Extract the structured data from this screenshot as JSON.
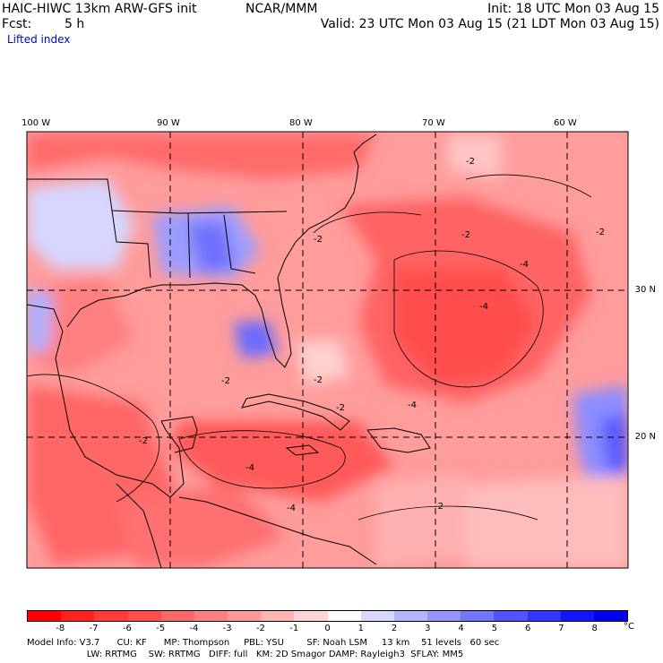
{
  "header": {
    "model_title": "HAIC-HIWC 13km ARW-GFS init",
    "org": "NCAR/MMM",
    "init": "Init: 18 UTC Mon 03 Aug 15",
    "fcst_label": "Fcst:",
    "fcst_value": "5 h",
    "valid": "Valid: 23 UTC Mon 03 Aug 15 (21 LDT Mon 03 Aug 15)",
    "field": "Lifted index"
  },
  "map": {
    "lon_labels": [
      "100 W",
      "90 W",
      "80 W",
      "70 W",
      "60 W"
    ],
    "lat_labels": [
      "30 N",
      "20 N"
    ],
    "contour_labels": [
      "-2",
      "-2",
      "-2",
      "-2",
      "-4",
      "-4",
      "-2",
      "-2",
      "-4",
      "-4",
      "-2",
      "-2",
      "-4",
      "-2"
    ],
    "colors": {
      "border": "#000000",
      "grid": "#000000"
    }
  },
  "colorbar": {
    "labels": [
      "-8",
      "-7",
      "-6",
      "-5",
      "-4",
      "-3",
      "-2",
      "-1",
      "0",
      "1",
      "2",
      "3",
      "4",
      "5",
      "6",
      "7",
      "8"
    ],
    "unit": "°C",
    "colors": [
      "#ff0000",
      "#ff2020",
      "#ff3a3a",
      "#ff5050",
      "#ff6868",
      "#ff8080",
      "#ff9898",
      "#ffb4b4",
      "#ffd4d4",
      "#ffffff",
      "#d8d8ff",
      "#b4b4ff",
      "#9494ff",
      "#7474ff",
      "#5454ff",
      "#3434ff",
      "#1414ff",
      "#0000ee"
    ]
  },
  "info": {
    "line1": "Model Info: V3.7      CU: KF      MP: Thompson     PBL: YSU        SF: Noah LSM     13 km    51 levels   60 sec",
    "line2": "                     LW: RRTMG    SW: RRTMG   DIFF: full   KM: 2D Smagor DAMP: Rayleigh3  SFLAY: MM5"
  }
}
